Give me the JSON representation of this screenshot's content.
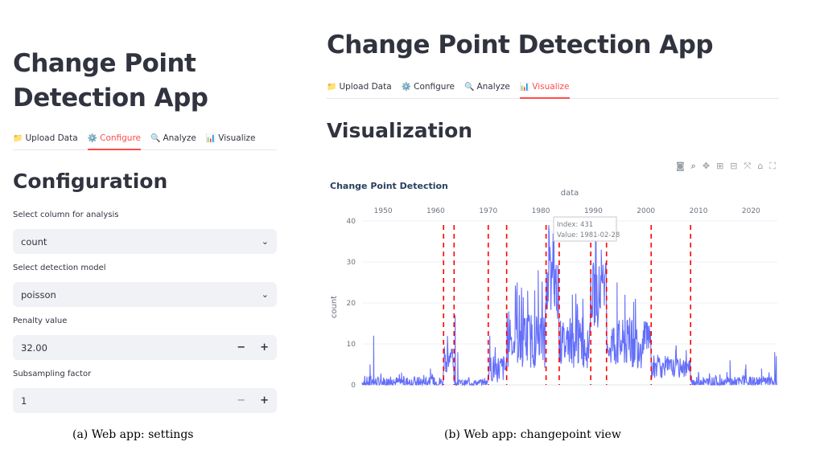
{
  "app_title": "Change Point Detection App",
  "tabs": [
    {
      "icon": "📁",
      "label": "Upload Data"
    },
    {
      "icon": "⚙️",
      "label": "Configure"
    },
    {
      "icon": "🔍",
      "label": "Analyze"
    },
    {
      "icon": "📊",
      "label": "Visualize"
    }
  ],
  "settings": {
    "section_title": "Configuration",
    "column_label": "Select column for analysis",
    "column_value": "count",
    "model_label": "Select detection model",
    "model_value": "poisson",
    "penalty_label": "Penalty value",
    "penalty_value": "32.00",
    "subsampling_label": "Subsampling factor",
    "subsampling_value": "1",
    "minus": "−",
    "plus": "+"
  },
  "visualization": {
    "section_title": "Visualization",
    "modebar_icons": [
      "camera-icon",
      "zoom-icon",
      "pan-icon",
      "zoom-in-icon",
      "zoom-out-icon",
      "autoscale-icon",
      "home-icon",
      "fullscreen-icon"
    ]
  },
  "tooltip": {
    "line1": "Index: 431",
    "line2": "Value: 1981-02-28"
  },
  "captions": {
    "a": "(a) Web app: settings",
    "b": "(b) Web app: changepoint view"
  },
  "colors": {
    "accent": "#ff4b4b",
    "series": "#636efa",
    "changepoint": "#ff0000"
  },
  "chart_data": {
    "type": "line",
    "title": "Change Point Detection",
    "xlabel": "data",
    "ylabel": "count",
    "xticks": [
      1950,
      1960,
      1970,
      1980,
      1990,
      2000,
      2010,
      2020
    ],
    "yticks": [
      0,
      10,
      20,
      30,
      40
    ],
    "xlim": [
      1946,
      2025
    ],
    "ylim": [
      0,
      40
    ],
    "grid": true,
    "changepoints": [
      1961.5,
      1963.5,
      1970,
      1973.5,
      1981,
      1983.5,
      1989.5,
      1992.5,
      2001,
      2008.5
    ],
    "series": [
      {
        "segments": [
          {
            "x0": 1946,
            "x1": 1961.5,
            "mean": 0.6,
            "noise": 1.5,
            "spikes": [
              [
                1948.2,
                12
              ],
              [
                1947.5,
                5
              ],
              [
                1953.5,
                3
              ],
              [
                1959,
                4
              ]
            ]
          },
          {
            "x0": 1961.5,
            "x1": 1963.5,
            "mean": 6,
            "noise": 3
          },
          {
            "x0": 1963.5,
            "x1": 1970,
            "mean": 0.5,
            "noise": 0.8,
            "spikes": [
              [
                1963.7,
                17
              ],
              [
                1964.2,
                8
              ]
            ]
          },
          {
            "x0": 1970,
            "x1": 1973.5,
            "mean": 4,
            "noise": 3.5,
            "spikes": [
              [
                1970.3,
                12
              ]
            ]
          },
          {
            "x0": 1973.5,
            "x1": 1981,
            "mean": 11,
            "noise": 7,
            "spikes": [
              [
                1975.5,
                25
              ],
              [
                1977.5,
                23
              ],
              [
                1979.5,
                28
              ]
            ]
          },
          {
            "x0": 1981,
            "x1": 1983.5,
            "mean": 24,
            "noise": 8,
            "spikes": [
              [
                1981.5,
                39
              ],
              [
                1982.5,
                37
              ]
            ]
          },
          {
            "x0": 1983.5,
            "x1": 1989.5,
            "mean": 10,
            "noise": 6,
            "spikes": [
              [
                1986,
                22
              ],
              [
                1988,
                21
              ]
            ]
          },
          {
            "x0": 1989.5,
            "x1": 1992.5,
            "mean": 22,
            "noise": 8,
            "spikes": [
              [
                1990.5,
                38
              ],
              [
                1991.5,
                33
              ]
            ]
          },
          {
            "x0": 1992.5,
            "x1": 2001,
            "mean": 10,
            "noise": 6,
            "spikes": [
              [
                1994.5,
                25
              ],
              [
                1996,
                22
              ],
              [
                1998,
                21
              ]
            ]
          },
          {
            "x0": 2001,
            "x1": 2008.5,
            "mean": 4,
            "noise": 2.5
          },
          {
            "x0": 2008.5,
            "x1": 2025,
            "mean": 0.6,
            "noise": 1.4,
            "spikes": [
              [
                2016,
                6
              ],
              [
                2019,
                5
              ],
              [
                2022,
                4
              ],
              [
                2024.5,
                8
              ],
              [
                2024.8,
                7
              ]
            ]
          }
        ]
      }
    ]
  }
}
